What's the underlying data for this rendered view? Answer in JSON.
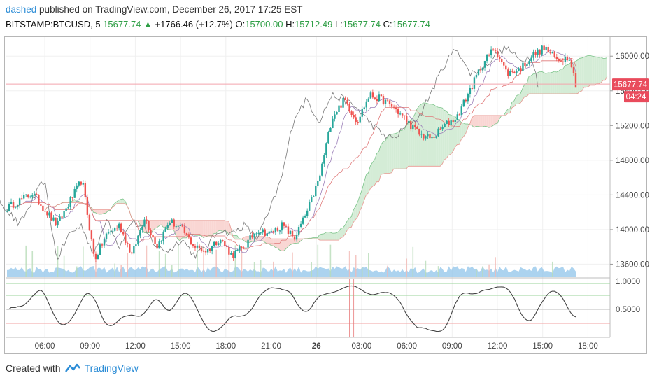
{
  "header": {
    "author": "dashed",
    "published": " published on TradingView.com, December 26, 2017 17:25 EST",
    "symbol": "BITSTAMP:BTCUSD, 5",
    "last": "15677.74",
    "change": "+1766.46 (+12.7%)",
    "o_label": "O:",
    "o_value": "15700.00",
    "h_label": "H:",
    "h_value": "15712.49",
    "l_label": "L:",
    "l_value": "15677.74",
    "c_label": "C:",
    "c_value": "15677.74"
  },
  "footer": {
    "created_with": "Created with",
    "brand": "TradingView"
  },
  "colors": {
    "up": "#26a69a",
    "down": "#ef5350",
    "cloud_up": "#d4ecd6",
    "cloud_down": "#f9d6d3",
    "volume": "#90c4ea",
    "oscillator": "#444444",
    "last_price": "#e94b5c",
    "grid": "#f0f0f0"
  },
  "chart_data": [
    {
      "type": "line",
      "subtype": "candlestick-with-ichimoku",
      "symbol": "BITSTAMP:BTCUSD",
      "interval": "5",
      "y_ticks": [
        "16000.00",
        "15600.00",
        "15200.00",
        "14800.00",
        "14400.00",
        "14000.00",
        "13600.00"
      ],
      "x_ticks": [
        "06:00",
        "09:00",
        "12:00",
        "15:00",
        "18:00",
        "21:00",
        "26",
        "03:00",
        "06:00",
        "09:00",
        "12:00",
        "15:00",
        "18:00"
      ],
      "ylim": [
        13450,
        16220
      ],
      "last_price": "15677.74",
      "countdown": "04:24",
      "price_path": [
        [
          0,
          14250
        ],
        [
          4,
          14420
        ],
        [
          8,
          14050
        ],
        [
          12,
          14580
        ],
        [
          14,
          13650
        ],
        [
          16,
          13950
        ],
        [
          18,
          14050
        ],
        [
          20,
          13700
        ],
        [
          22,
          14150
        ],
        [
          24,
          13800
        ],
        [
          26,
          14100
        ],
        [
          28,
          14000
        ],
        [
          30,
          13800
        ],
        [
          32,
          13750
        ],
        [
          34,
          13900
        ],
        [
          36,
          13700
        ],
        [
          38,
          13800
        ],
        [
          40,
          14000
        ],
        [
          42,
          13950
        ],
        [
          44,
          14050
        ],
        [
          46,
          13900
        ],
        [
          48,
          14200
        ],
        [
          50,
          14600
        ],
        [
          52,
          15300
        ],
        [
          54,
          15500
        ],
        [
          56,
          15250
        ],
        [
          58,
          15550
        ],
        [
          60,
          15500
        ],
        [
          62,
          15400
        ],
        [
          64,
          15250
        ],
        [
          66,
          15100
        ],
        [
          68,
          15050
        ],
        [
          70,
          15200
        ],
        [
          72,
          15300
        ],
        [
          74,
          15600
        ],
        [
          76,
          15900
        ],
        [
          78,
          16100
        ],
        [
          80,
          15800
        ],
        [
          82,
          15850
        ],
        [
          84,
          16000
        ],
        [
          86,
          16100
        ],
        [
          88,
          15950
        ],
        [
          90,
          16000
        ],
        [
          91,
          15680
        ]
      ]
    },
    {
      "type": "line",
      "subtype": "oscillator",
      "y_ticks": [
        "1.0000",
        "0.5000"
      ],
      "ylim": [
        0,
        1.05
      ]
    }
  ]
}
